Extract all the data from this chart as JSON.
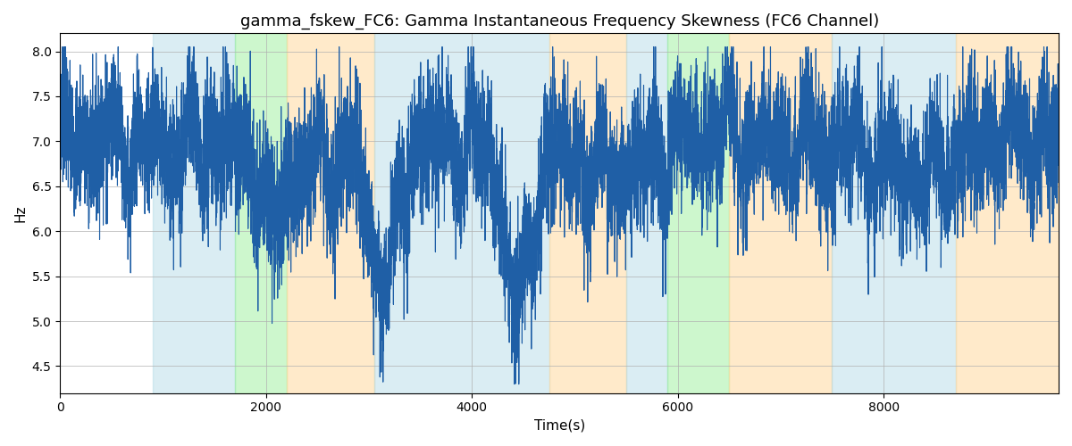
{
  "title": "gamma_fskew_FC6: Gamma Instantaneous Frequency Skewness (FC6 Channel)",
  "xlabel": "Time(s)",
  "ylabel": "Hz",
  "xlim": [
    0,
    9700
  ],
  "ylim": [
    4.2,
    8.2
  ],
  "yticks": [
    4.5,
    5.0,
    5.5,
    6.0,
    6.5,
    7.0,
    7.5,
    8.0
  ],
  "xticks": [
    0,
    2000,
    4000,
    6000,
    8000
  ],
  "bg_bands": [
    {
      "xmin": 900,
      "xmax": 1700,
      "color": "#add8e6",
      "alpha": 0.45
    },
    {
      "xmin": 1700,
      "xmax": 2200,
      "color": "#90ee90",
      "alpha": 0.45
    },
    {
      "xmin": 2200,
      "xmax": 3050,
      "color": "#ffd9a0",
      "alpha": 0.55
    },
    {
      "xmin": 3050,
      "xmax": 4750,
      "color": "#add8e6",
      "alpha": 0.45
    },
    {
      "xmin": 4750,
      "xmax": 5500,
      "color": "#ffd9a0",
      "alpha": 0.55
    },
    {
      "xmin": 5500,
      "xmax": 5900,
      "color": "#add8e6",
      "alpha": 0.45
    },
    {
      "xmin": 5900,
      "xmax": 6500,
      "color": "#90ee90",
      "alpha": 0.45
    },
    {
      "xmin": 6500,
      "xmax": 7500,
      "color": "#ffd9a0",
      "alpha": 0.55
    },
    {
      "xmin": 7500,
      "xmax": 8700,
      "color": "#add8e6",
      "alpha": 0.45
    },
    {
      "xmin": 8700,
      "xmax": 9700,
      "color": "#ffd9a0",
      "alpha": 0.55
    }
  ],
  "line_color": "#1f5fa6",
  "line_width": 0.8,
  "grid_color": "#b0b0b0",
  "grid_alpha": 0.7,
  "title_fontsize": 13,
  "label_fontsize": 11,
  "tick_fontsize": 10,
  "seed": 7,
  "n_points": 9700,
  "signal_mean": 6.9,
  "noise_scale": 0.38
}
